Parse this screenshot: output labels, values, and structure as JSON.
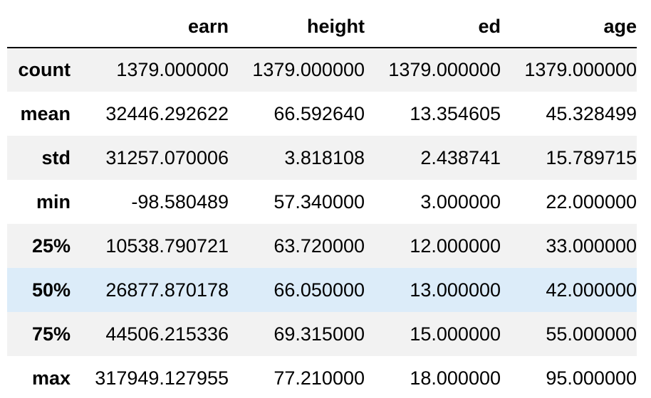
{
  "table": {
    "columns": [
      "",
      "earn",
      "height",
      "ed",
      "age"
    ],
    "rows": [
      {
        "label": "count",
        "values": [
          "1379.000000",
          "1379.000000",
          "1379.000000",
          "1379.000000"
        ]
      },
      {
        "label": "mean",
        "values": [
          "32446.292622",
          "66.592640",
          "13.354605",
          "45.328499"
        ]
      },
      {
        "label": "std",
        "values": [
          "31257.070006",
          "3.818108",
          "2.438741",
          "15.789715"
        ]
      },
      {
        "label": "min",
        "values": [
          "-98.580489",
          "57.340000",
          "3.000000",
          "22.000000"
        ]
      },
      {
        "label": "25%",
        "values": [
          "10538.790721",
          "63.720000",
          "12.000000",
          "33.000000"
        ]
      },
      {
        "label": "50%",
        "values": [
          "26877.870178",
          "66.050000",
          "13.000000",
          "42.000000"
        ]
      },
      {
        "label": "75%",
        "values": [
          "44506.215336",
          "69.315000",
          "15.000000",
          "55.000000"
        ]
      },
      {
        "label": "max",
        "values": [
          "317949.127955",
          "77.210000",
          "18.000000",
          "95.000000"
        ]
      }
    ],
    "highlighted_row": "50%"
  },
  "colors": {
    "stripe": "#f2f2f2",
    "highlight": "#dcecf9",
    "header_rule": "#000000"
  }
}
